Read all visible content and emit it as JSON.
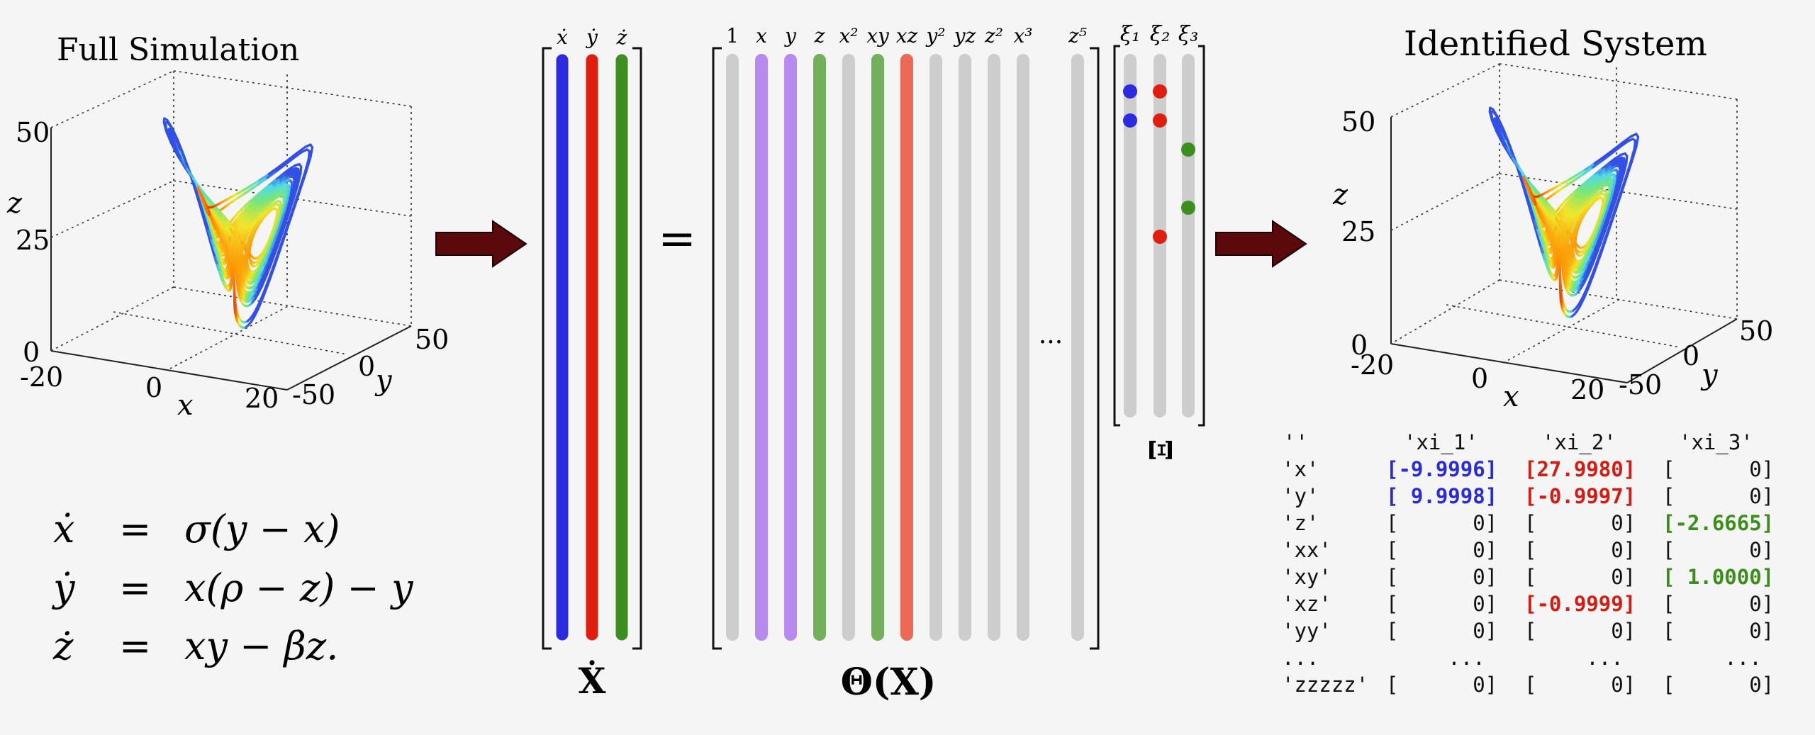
{
  "left_panel": {
    "title": "Full Simulation",
    "axes": {
      "x_label": "x",
      "y_label": "y",
      "z_label": "z",
      "z_ticks": [
        "50",
        "25",
        "0"
      ],
      "x_ticks": [
        "-20",
        "0",
        "20"
      ],
      "y_ticks": [
        "50",
        "0",
        "-50"
      ]
    }
  },
  "right_panel": {
    "title": "Identified System",
    "axes": {
      "x_label": "x",
      "y_label": "y",
      "z_label": "z",
      "z_ticks": [
        "50",
        "25",
        "0"
      ],
      "x_ticks": [
        "-20",
        "0",
        "20"
      ],
      "y_ticks": [
        "50",
        "0",
        "-50"
      ]
    }
  },
  "equations": [
    {
      "lhs": "ẋ",
      "eq": "=",
      "rhs": "σ(y − x)"
    },
    {
      "lhs": "ẏ",
      "eq": "=",
      "rhs": "x(ρ − z) − y"
    },
    {
      "lhs": "ż",
      "eq": "=",
      "rhs": "xy − βz."
    }
  ],
  "xdot_matrix": {
    "label": "Ẋ",
    "columns": [
      {
        "label": "ẋ",
        "color": "#2b2bdf"
      },
      {
        "label": "ẏ",
        "color": "#e01e10"
      },
      {
        "label": "ż",
        "color": "#3c8f1f"
      }
    ]
  },
  "equals_sign": "=",
  "theta_matrix": {
    "label": "Θ(X)",
    "ellipsis": "···",
    "columns": [
      {
        "label": "1",
        "color": "#cdcdcd"
      },
      {
        "label": "x",
        "color": "#b78af0"
      },
      {
        "label": "y",
        "color": "#b78af0"
      },
      {
        "label": "z",
        "color": "#72b05c"
      },
      {
        "label": "x²",
        "color": "#cdcdcd"
      },
      {
        "label": "xy",
        "color": "#72b05c"
      },
      {
        "label": "xz",
        "color": "#ec6a55"
      },
      {
        "label": "y²",
        "color": "#cdcdcd"
      },
      {
        "label": "yz",
        "color": "#cdcdcd"
      },
      {
        "label": "z²",
        "color": "#cdcdcd"
      },
      {
        "label": "x³",
        "color": "#cdcdcd"
      },
      {
        "label": "z⁵",
        "color": "#cdcdcd"
      }
    ]
  },
  "xi_matrix": {
    "label": "Ξ",
    "columns": [
      {
        "label": "ξ₁",
        "dots": [
          1,
          2
        ],
        "color": "#2b2bdf"
      },
      {
        "label": "ξ₂",
        "dots": [
          1,
          2,
          6
        ],
        "color": "#e01e10"
      },
      {
        "label": "ξ₃",
        "dots": [
          3,
          5
        ],
        "color": "#3c8f1f"
      }
    ]
  },
  "arrow_color": "#5a0a0a",
  "coefficients": {
    "header": [
      "''",
      "'xi_1'",
      "'xi_2'",
      "'xi_3'"
    ],
    "rows": [
      {
        "term": "'x'",
        "v1": "[-9.9996]",
        "c1": "blue",
        "v2": "[27.9980]",
        "c2": "red",
        "v3": "[      0]",
        "c3": ""
      },
      {
        "term": "'y'",
        "v1": "[ 9.9998]",
        "c1": "blue",
        "v2": "[-0.9997]",
        "c2": "red",
        "v3": "[      0]",
        "c3": ""
      },
      {
        "term": "'z'",
        "v1": "[      0]",
        "c1": "",
        "v2": "[      0]",
        "c2": "",
        "v3": "[-2.6665]",
        "c3": "green"
      },
      {
        "term": "'xx'",
        "v1": "[      0]",
        "c1": "",
        "v2": "[      0]",
        "c2": "",
        "v3": "[      0]",
        "c3": ""
      },
      {
        "term": "'xy'",
        "v1": "[      0]",
        "c1": "",
        "v2": "[      0]",
        "c2": "",
        "v3": "[ 1.0000]",
        "c3": "green"
      },
      {
        "term": "'xz'",
        "v1": "[      0]",
        "c1": "",
        "v2": "[-0.9999]",
        "c2": "red",
        "v3": "[      0]",
        "c3": ""
      },
      {
        "term": "'yy'",
        "v1": "[      0]",
        "c1": "",
        "v2": "[      0]",
        "c2": "",
        "v3": "[      0]",
        "c3": ""
      },
      {
        "term": "...",
        "v1": "     ...",
        "c1": "",
        "v2": "     ...",
        "c2": "",
        "v3": "     ...",
        "c3": ""
      },
      {
        "term": "'zzzzz'",
        "v1": "[      0]",
        "c1": "",
        "v2": "[      0]",
        "c2": "",
        "v3": "[      0]",
        "c3": ""
      }
    ]
  }
}
